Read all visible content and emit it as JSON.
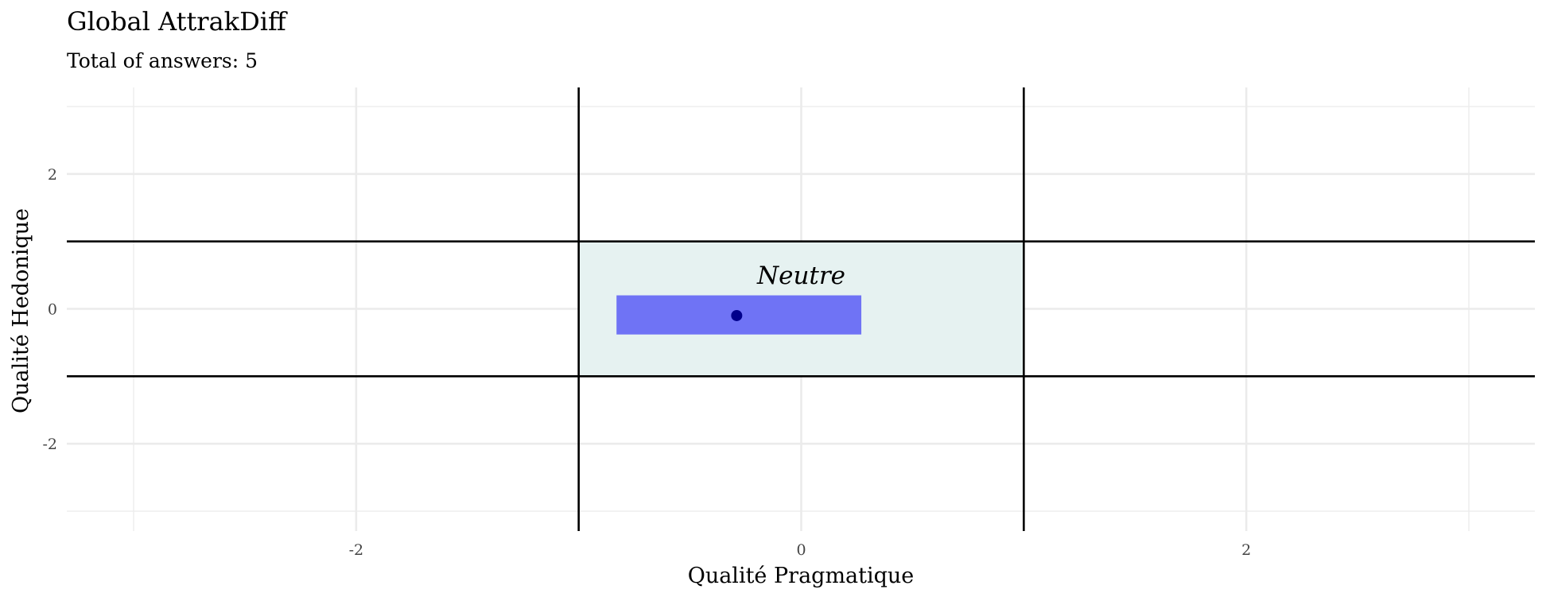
{
  "chart_data": {
    "type": "scatter",
    "title": "Global AttrakDiff",
    "subtitle": "Total of answers: 5",
    "xlabel": "Qualité Pragmatique",
    "ylabel": "Qualité Hedonique",
    "xlim": [
      -3,
      3
    ],
    "ylim": [
      -3,
      3
    ],
    "x_ticks": [
      -2,
      0,
      2
    ],
    "x_tick_labels": [
      "-2",
      "0",
      "2"
    ],
    "y_ticks": [
      2,
      0,
      -2
    ],
    "y_tick_labels": [
      "2",
      "0",
      "-2"
    ],
    "grid": true,
    "divider_lines_x": [
      -1,
      1
    ],
    "divider_lines_y": [
      -1,
      1
    ],
    "region": {
      "label": "Neutre",
      "x": [
        -1,
        1
      ],
      "y": [
        -1,
        1
      ],
      "color": "#e6f2f1"
    },
    "confidence_box": {
      "x": [
        -0.83,
        0.27
      ],
      "y": [
        -0.38,
        0.2
      ],
      "color": "#6f73f5"
    },
    "points": [
      {
        "x": -0.29,
        "y": -0.1
      }
    ],
    "point_color": "#00008b"
  }
}
